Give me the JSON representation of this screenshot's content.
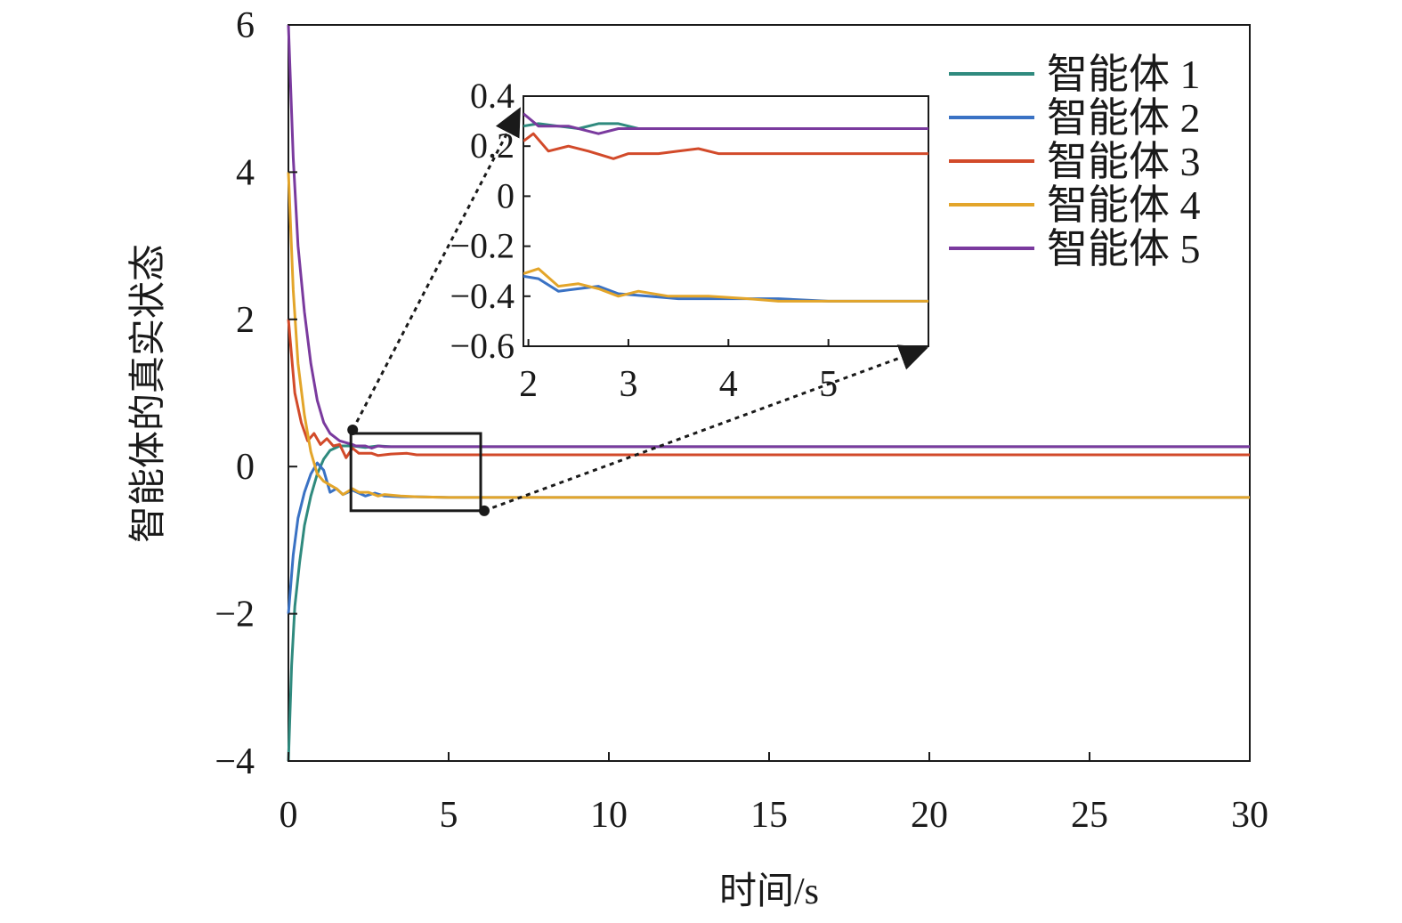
{
  "chart_data": [
    {
      "type": "line",
      "title": "",
      "xlabel": "时间/s",
      "ylabel": "智能体的真实状态",
      "xlim": [
        0,
        30
      ],
      "ylim": [
        -4,
        6
      ],
      "xticks": [
        0,
        5,
        10,
        15,
        20,
        25,
        30
      ],
      "yticks": [
        -4,
        -2,
        0,
        2,
        4,
        6
      ],
      "ytick_labels": [
        "−4",
        "−2",
        "0",
        "2",
        "4",
        "6"
      ],
      "grid": false,
      "legend": "top-right",
      "series": [
        {
          "name": "智能体 1",
          "color": "#2f8a7e",
          "points": [
            [
              0,
              -4
            ],
            [
              0.1,
              -2.7
            ],
            [
              0.2,
              -1.9
            ],
            [
              0.35,
              -1.3
            ],
            [
              0.5,
              -0.8
            ],
            [
              0.7,
              -0.4
            ],
            [
              0.9,
              -0.1
            ],
            [
              1.1,
              0.1
            ],
            [
              1.3,
              0.22
            ],
            [
              1.6,
              0.28
            ],
            [
              2.0,
              0.28
            ],
            [
              2.4,
              0.26
            ],
            [
              2.8,
              0.28
            ],
            [
              3.2,
              0.27
            ],
            [
              4,
              0.27
            ],
            [
              6,
              0.27
            ],
            [
              30,
              0.27
            ]
          ]
        },
        {
          "name": "智能体 2",
          "color": "#3a72c4",
          "points": [
            [
              0,
              -2
            ],
            [
              0.15,
              -1.2
            ],
            [
              0.3,
              -0.7
            ],
            [
              0.5,
              -0.35
            ],
            [
              0.7,
              -0.1
            ],
            [
              0.9,
              0.05
            ],
            [
              1.1,
              -0.05
            ],
            [
              1.3,
              -0.35
            ],
            [
              1.5,
              -0.3
            ],
            [
              1.7,
              -0.38
            ],
            [
              2.0,
              -0.32
            ],
            [
              2.4,
              -0.4
            ],
            [
              2.7,
              -0.36
            ],
            [
              3.0,
              -0.4
            ],
            [
              3.5,
              -0.41
            ],
            [
              4,
              -0.41
            ],
            [
              5,
              -0.42
            ],
            [
              6,
              -0.42
            ],
            [
              30,
              -0.42
            ]
          ]
        },
        {
          "name": "智能体 3",
          "color": "#d24a2a",
          "points": [
            [
              0,
              2
            ],
            [
              0.2,
              1.0
            ],
            [
              0.4,
              0.6
            ],
            [
              0.6,
              0.35
            ],
            [
              0.8,
              0.45
            ],
            [
              1.0,
              0.3
            ],
            [
              1.2,
              0.38
            ],
            [
              1.4,
              0.28
            ],
            [
              1.6,
              0.3
            ],
            [
              1.8,
              0.12
            ],
            [
              2.0,
              0.25
            ],
            [
              2.2,
              0.18
            ],
            [
              2.6,
              0.18
            ],
            [
              2.8,
              0.15
            ],
            [
              3.2,
              0.17
            ],
            [
              3.7,
              0.18
            ],
            [
              4,
              0.16
            ],
            [
              5,
              0.16
            ],
            [
              6,
              0.16
            ],
            [
              30,
              0.16
            ]
          ]
        },
        {
          "name": "智能体 4",
          "color": "#e3a52a",
          "points": [
            [
              0,
              4
            ],
            [
              0.15,
              2.4
            ],
            [
              0.3,
              1.4
            ],
            [
              0.5,
              0.7
            ],
            [
              0.7,
              0.2
            ],
            [
              0.9,
              -0.1
            ],
            [
              1.1,
              -0.2
            ],
            [
              1.3,
              -0.25
            ],
            [
              1.5,
              -0.3
            ],
            [
              1.7,
              -0.38
            ],
            [
              2.0,
              -0.3
            ],
            [
              2.2,
              -0.35
            ],
            [
              2.5,
              -0.35
            ],
            [
              2.8,
              -0.4
            ],
            [
              3.0,
              -0.38
            ],
            [
              3.5,
              -0.4
            ],
            [
              4,
              -0.41
            ],
            [
              5,
              -0.42
            ],
            [
              6,
              -0.42
            ],
            [
              30,
              -0.42
            ]
          ]
        },
        {
          "name": "智能体 5",
          "color": "#7a3a9e",
          "points": [
            [
              0,
              6
            ],
            [
              0.15,
              4.2
            ],
            [
              0.3,
              3.0
            ],
            [
              0.5,
              2.1
            ],
            [
              0.7,
              1.4
            ],
            [
              0.9,
              0.9
            ],
            [
              1.1,
              0.6
            ],
            [
              1.3,
              0.45
            ],
            [
              1.6,
              0.35
            ],
            [
              2.0,
              0.3
            ],
            [
              2.1,
              0.28
            ],
            [
              2.4,
              0.28
            ],
            [
              2.6,
              0.25
            ],
            [
              2.8,
              0.28
            ],
            [
              3.0,
              0.27
            ],
            [
              4,
              0.27
            ],
            [
              6,
              0.27
            ],
            [
              30,
              0.27
            ]
          ]
        }
      ]
    },
    {
      "type": "line",
      "title": "",
      "xlim": [
        1.95,
        6.0
      ],
      "ylim": [
        -0.6,
        0.4
      ],
      "xticks": [
        2,
        3,
        4,
        5
      ],
      "yticks": [
        0.4,
        0.2,
        0,
        -0.2,
        -0.4,
        -0.6
      ],
      "ytick_labels": [
        "0.4",
        "0.2",
        "0",
        "−0.2",
        "−0.4",
        "−0.6"
      ],
      "grid": false,
      "zoom_window": {
        "x": [
          1.95,
          6.0
        ],
        "y": [
          -0.6,
          0.45
        ]
      },
      "series": [
        {
          "name": "智能体 1",
          "color": "#2f8a7e",
          "points": [
            [
              1.95,
              0.28
            ],
            [
              2.1,
              0.29
            ],
            [
              2.3,
              0.28
            ],
            [
              2.5,
              0.27
            ],
            [
              2.7,
              0.29
            ],
            [
              2.9,
              0.29
            ],
            [
              3.1,
              0.27
            ],
            [
              3.5,
              0.27
            ],
            [
              4,
              0.27
            ],
            [
              5,
              0.27
            ],
            [
              6,
              0.27
            ]
          ]
        },
        {
          "name": "智能体 2",
          "color": "#3a72c4",
          "points": [
            [
              1.95,
              -0.32
            ],
            [
              2.1,
              -0.33
            ],
            [
              2.3,
              -0.38
            ],
            [
              2.5,
              -0.37
            ],
            [
              2.7,
              -0.36
            ],
            [
              2.9,
              -0.39
            ],
            [
              3.2,
              -0.4
            ],
            [
              3.5,
              -0.41
            ],
            [
              4,
              -0.41
            ],
            [
              4.5,
              -0.41
            ],
            [
              5,
              -0.42
            ],
            [
              6,
              -0.42
            ]
          ]
        },
        {
          "name": "智能体 3",
          "color": "#d24a2a",
          "points": [
            [
              1.95,
              0.22
            ],
            [
              2.05,
              0.25
            ],
            [
              2.2,
              0.18
            ],
            [
              2.4,
              0.2
            ],
            [
              2.6,
              0.18
            ],
            [
              2.85,
              0.15
            ],
            [
              3.0,
              0.17
            ],
            [
              3.3,
              0.17
            ],
            [
              3.5,
              0.18
            ],
            [
              3.7,
              0.19
            ],
            [
              3.9,
              0.17
            ],
            [
              4.2,
              0.17
            ],
            [
              5,
              0.17
            ],
            [
              6,
              0.17
            ]
          ]
        },
        {
          "name": "智能体 4",
          "color": "#e3a52a",
          "points": [
            [
              1.95,
              -0.31
            ],
            [
              2.1,
              -0.29
            ],
            [
              2.3,
              -0.36
            ],
            [
              2.5,
              -0.35
            ],
            [
              2.7,
              -0.37
            ],
            [
              2.9,
              -0.4
            ],
            [
              3.1,
              -0.38
            ],
            [
              3.4,
              -0.4
            ],
            [
              3.8,
              -0.4
            ],
            [
              4.2,
              -0.41
            ],
            [
              4.5,
              -0.42
            ],
            [
              5,
              -0.42
            ],
            [
              6,
              -0.42
            ]
          ]
        },
        {
          "name": "智能体 5",
          "color": "#7a3a9e",
          "points": [
            [
              1.95,
              0.33
            ],
            [
              2.1,
              0.28
            ],
            [
              2.4,
              0.28
            ],
            [
              2.7,
              0.25
            ],
            [
              2.9,
              0.27
            ],
            [
              3.2,
              0.27
            ],
            [
              3.6,
              0.27
            ],
            [
              4,
              0.27
            ],
            [
              5,
              0.27
            ],
            [
              6,
              0.27
            ]
          ]
        }
      ]
    }
  ]
}
